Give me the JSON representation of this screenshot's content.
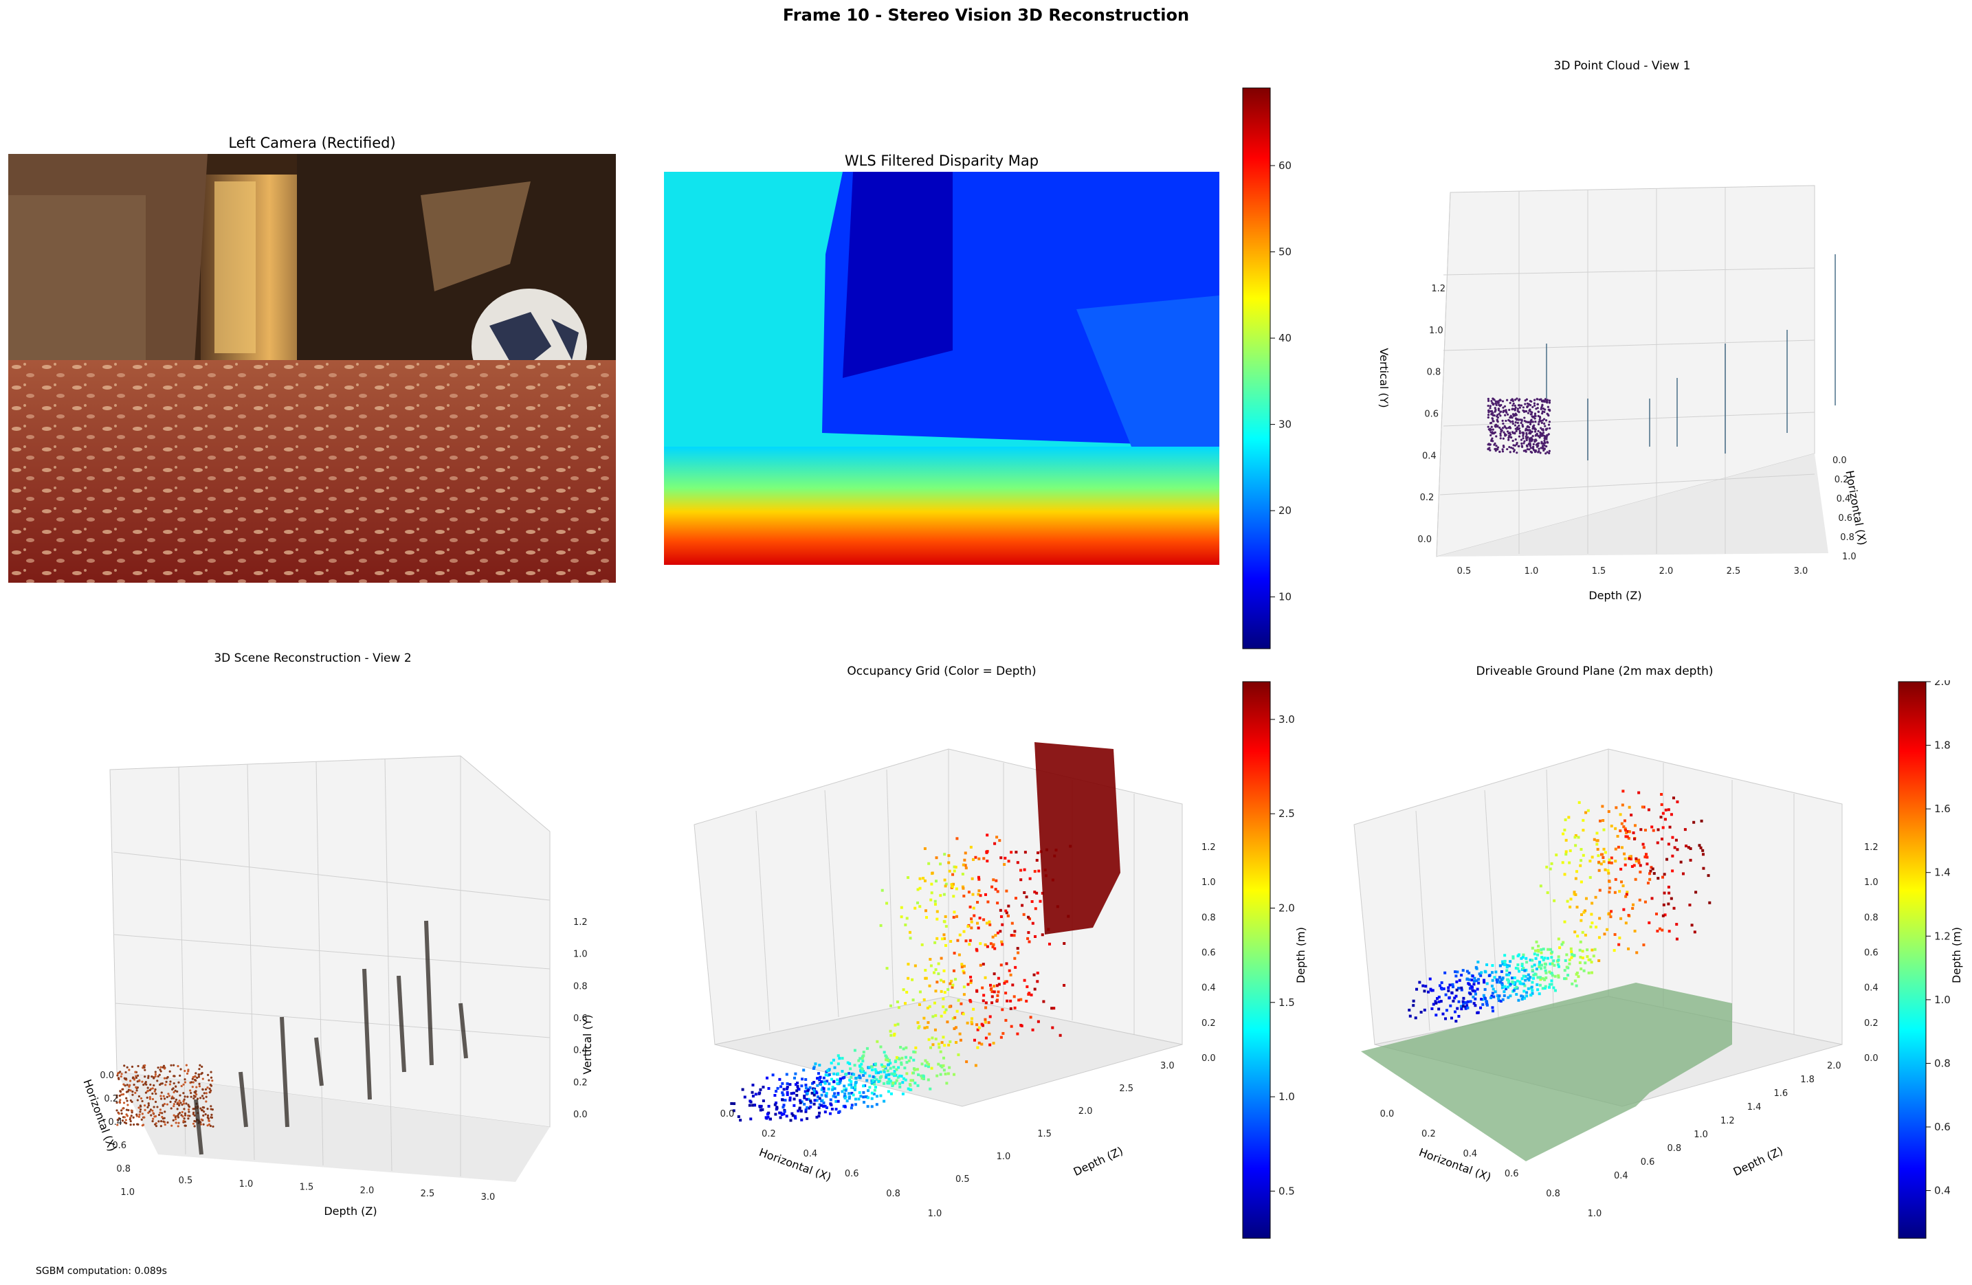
{
  "suptitle": "Frame 10 - Stereo Vision 3D Reconstruction",
  "footer": "SGBM computation: 0.089s",
  "panels": {
    "left_camera": {
      "title": "Left Camera (Rectified)"
    },
    "disparity": {
      "title": "WLS Filtered Disparity Map"
    },
    "cloud1": {
      "title": "3D Point Cloud - View 1"
    },
    "scene2": {
      "title": "3D Scene Reconstruction - View 2"
    },
    "occupancy": {
      "title": "Occupancy Grid (Color = Depth)"
    },
    "ground": {
      "title": "Driveable Ground Plane (2m max depth)"
    }
  },
  "chart_data": [
    {
      "type": "image",
      "title": "Left Camera (Rectified)"
    },
    {
      "type": "heatmap",
      "title": "WLS Filtered Disparity Map",
      "colormap": "jet",
      "colorbar": {
        "ticks": [
          "10",
          "20",
          "30",
          "40",
          "50",
          "60"
        ],
        "range": [
          4,
          69
        ]
      }
    },
    {
      "type": "scatter",
      "title": "3D Point Cloud - View 1",
      "xlabel": "Depth (Z)",
      "ylabel": "Horizontal (X)",
      "zlabel": "Vertical (Y)",
      "xticks": [
        "0.5",
        "1.0",
        "1.5",
        "2.0",
        "2.5",
        "3.0"
      ],
      "yticks": [
        "0.0",
        "0.2",
        "0.4",
        "0.6",
        "0.8",
        "1.0"
      ],
      "zticks": [
        "0.0",
        "0.2",
        "0.4",
        "0.6",
        "0.8",
        "1.0",
        "1.2"
      ]
    },
    {
      "type": "scatter",
      "title": "3D Scene Reconstruction - View 2",
      "xlabel": "Depth (Z)",
      "ylabel": "Horizontal (X)",
      "zlabel": "Vertical (Y)",
      "xticks": [
        "0.5",
        "1.0",
        "1.5",
        "2.0",
        "2.5",
        "3.0"
      ],
      "yticks": [
        "0.0",
        "0.2",
        "0.4",
        "0.6",
        "0.8",
        "1.0"
      ],
      "zticks": [
        "0.0",
        "0.2",
        "0.4",
        "0.6",
        "0.8",
        "1.0",
        "1.2"
      ]
    },
    {
      "type": "scatter",
      "title": "Occupancy Grid (Color = Depth)",
      "xlabel": "Horizontal (X)",
      "ylabel": "Depth (Z)",
      "zlabel": "",
      "xticks": [
        "0.0",
        "0.2",
        "0.4",
        "0.6",
        "0.8",
        "1.0"
      ],
      "yticks": [
        "0.5",
        "1.0",
        "1.5",
        "2.0",
        "2.5",
        "3.0"
      ],
      "zticks": [
        "0.0",
        "0.2",
        "0.4",
        "0.6",
        "0.8",
        "1.0",
        "1.2"
      ],
      "colorbar": {
        "label": "Depth (m)",
        "ticks": [
          "0.5",
          "1.0",
          "1.5",
          "2.0",
          "2.5",
          "3.0"
        ],
        "range": [
          0.25,
          3.2
        ]
      }
    },
    {
      "type": "scatter",
      "title": "Driveable Ground Plane (2m max depth)",
      "xlabel": "Horizontal (X)",
      "ylabel": "Depth (Z)",
      "zlabel": "",
      "xticks": [
        "0.0",
        "0.2",
        "0.4",
        "0.6",
        "0.8",
        "1.0"
      ],
      "yticks": [
        "0.4",
        "0.6",
        "0.8",
        "1.0",
        "1.2",
        "1.4",
        "1.6",
        "1.8",
        "2.0"
      ],
      "zticks": [
        "0.0",
        "0.2",
        "0.4",
        "0.6",
        "0.8",
        "1.0",
        "1.2"
      ],
      "colorbar": {
        "label": "Depth (m)",
        "ticks": [
          "0.4",
          "0.6",
          "0.8",
          "1.0",
          "1.2",
          "1.4",
          "1.6",
          "1.8",
          "2.0"
        ],
        "range": [
          0.25,
          2.0
        ]
      }
    }
  ]
}
